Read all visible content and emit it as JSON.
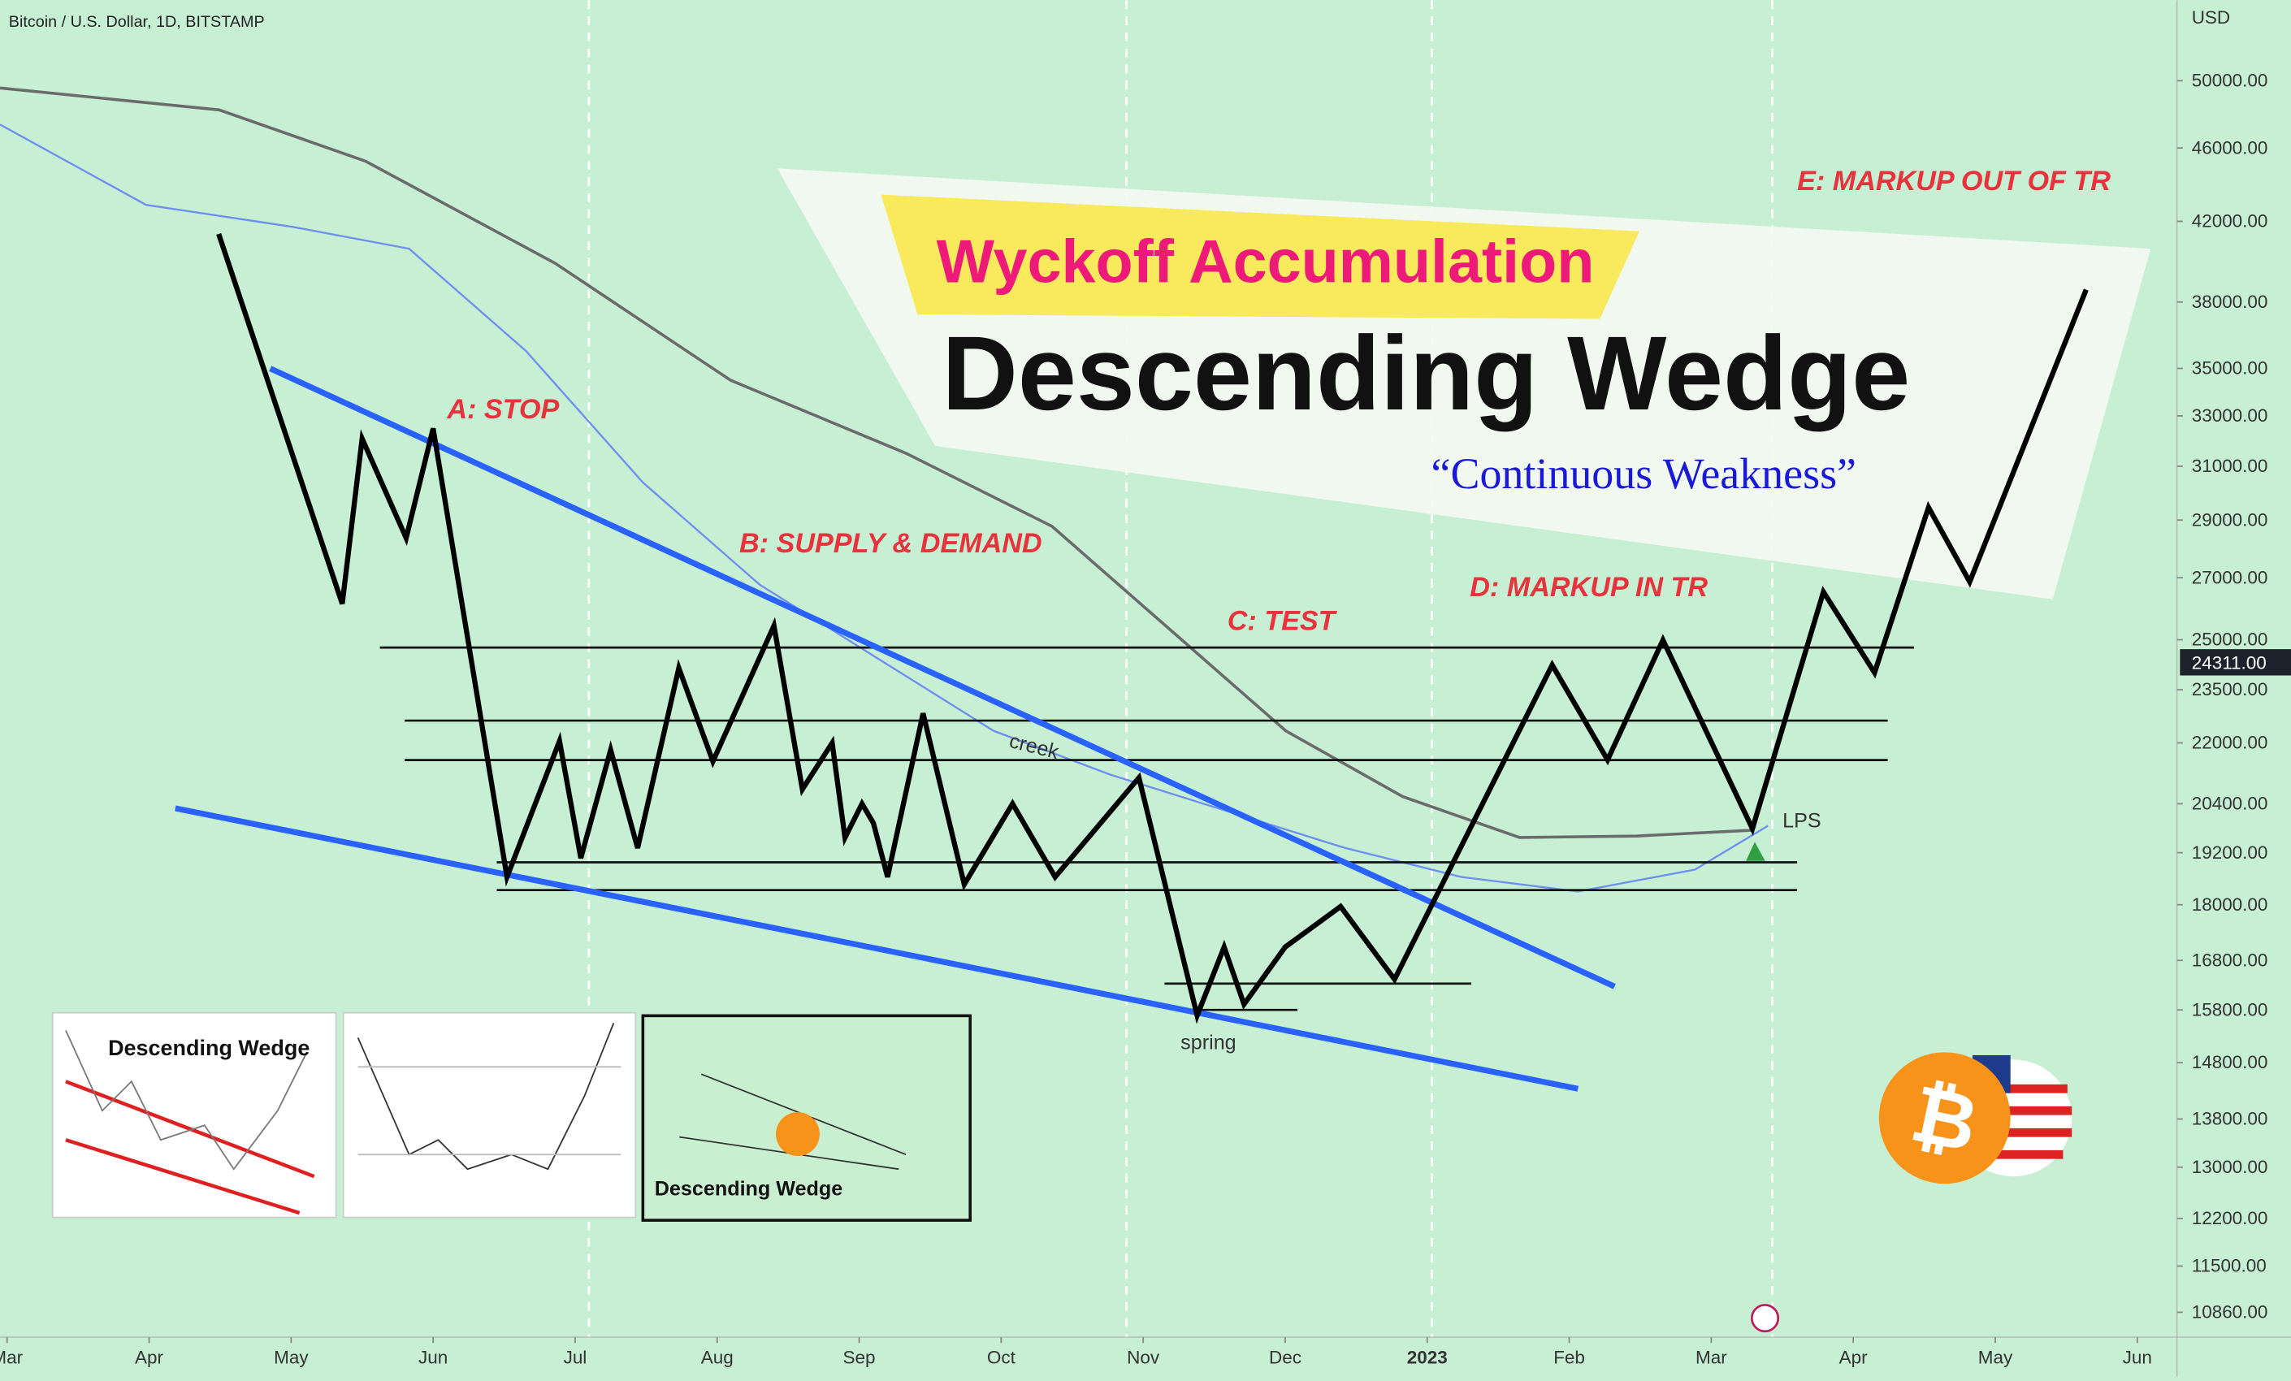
{
  "chart_data": {
    "type": "line",
    "title": "Bitcoin / U.S. Dollar, 1D, BITSTAMP",
    "y_label": "USD",
    "yscale": "log",
    "grid": false,
    "color": "#000000",
    "xlim": [
      -0.05,
      15.28
    ],
    "ylim": [
      10530,
      55240
    ],
    "xticks": [
      {
        "value": 0,
        "label": "Mar"
      },
      {
        "value": 1,
        "label": "Apr"
      },
      {
        "value": 2,
        "label": "May"
      },
      {
        "value": 3,
        "label": "Jun"
      },
      {
        "value": 4,
        "label": "Jul"
      },
      {
        "value": 5,
        "label": "Aug"
      },
      {
        "value": 6,
        "label": "Sep"
      },
      {
        "value": 7,
        "label": "Oct"
      },
      {
        "value": 8,
        "label": "Nov"
      },
      {
        "value": 9,
        "label": "Dec"
      },
      {
        "value": 10,
        "label": "2023"
      },
      {
        "value": 11,
        "label": "Feb"
      },
      {
        "value": 12,
        "label": "Mar"
      },
      {
        "value": 13,
        "label": "Apr"
      },
      {
        "value": 14,
        "label": "May"
      },
      {
        "value": 15,
        "label": "Jun"
      }
    ],
    "yticks": [
      {
        "value": 50000,
        "label": "50000.00"
      },
      {
        "value": 46000,
        "label": "46000.00"
      },
      {
        "value": 42000,
        "label": "42000.00"
      },
      {
        "value": 38000,
        "label": "38000.00"
      },
      {
        "value": 35000,
        "label": "35000.00"
      },
      {
        "value": 33000,
        "label": "33000.00"
      },
      {
        "value": 31000,
        "label": "31000.00"
      },
      {
        "value": 29000,
        "label": "29000.00"
      },
      {
        "value": 27000,
        "label": "27000.00"
      },
      {
        "value": 25000,
        "label": "25000.00"
      },
      {
        "value": 23500,
        "label": "23500.00"
      },
      {
        "value": 22000,
        "label": "22000.00"
      },
      {
        "value": 20400,
        "label": "20400.00"
      },
      {
        "value": 19200,
        "label": "19200.00"
      },
      {
        "value": 18000,
        "label": "18000.00"
      },
      {
        "value": 16800,
        "label": "16800.00"
      },
      {
        "value": 15800,
        "label": "15800.00"
      },
      {
        "value": 14800,
        "label": "14800.00"
      },
      {
        "value": 13800,
        "label": "13800.00"
      },
      {
        "value": 13000,
        "label": "13000.00"
      },
      {
        "value": 12200,
        "label": "12200.00"
      },
      {
        "value": 11500,
        "label": "11500.00"
      },
      {
        "value": 10860,
        "label": "10860.00"
      }
    ],
    "last_price": {
      "value": 24311,
      "label": "24311.00"
    },
    "x": [
      1.49,
      2.36,
      2.5,
      2.81,
      3.0,
      3.52,
      3.89,
      4.04,
      4.25,
      4.44,
      4.73,
      4.97,
      5.4,
      5.6,
      5.81,
      5.9,
      6.02,
      6.1,
      6.2,
      6.45,
      6.74,
      7.08,
      7.38,
      7.97,
      8.38,
      8.57,
      8.71,
      9.0,
      9.39,
      9.77,
      10.88,
      11.27,
      11.66,
      12.29,
      12.79,
      13.15,
      13.53,
      13.82,
      14.64
    ],
    "values": [
      41350,
      26140,
      32080,
      28360,
      32490,
      18630,
      22050,
      19070,
      21810,
      19310,
      24140,
      21500,
      25440,
      20770,
      22000,
      19560,
      20400,
      19920,
      18630,
      22820,
      18460,
      20400,
      18630,
      21070,
      15690,
      17080,
      15910,
      17080,
      17960,
      16410,
      24230,
      21540,
      24990,
      19780,
      26530,
      24000,
      29460,
      26860,
      38590
    ],
    "annotations": [
      "A: STOP",
      "B: SUPPLY & DEMAND",
      "C: TEST",
      "D: MARKUP IN TR",
      "E: MARKUP OUT OF TR",
      "creek",
      "spring",
      "LPS"
    ],
    "banner": {
      "kicker": "Wyckoff Accumulation",
      "headline": "Descending Wedge",
      "tagline": "“Continuous Weakness”"
    },
    "thumbnails": [
      "Descending Wedge",
      "Descending Wedge"
    ]
  }
}
